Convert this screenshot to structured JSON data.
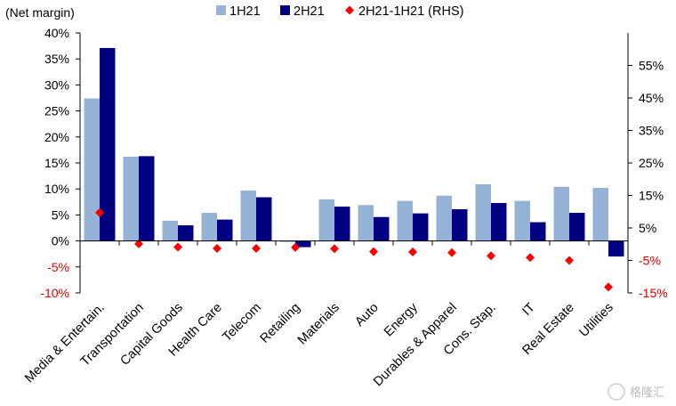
{
  "chart_data": {
    "type": "bar",
    "unit_label": "(Net margin)",
    "categories": [
      "Media & Entertain.",
      "Transportation",
      "Capital Goods",
      "Health Care",
      "Telecom",
      "Retailing",
      "Materials",
      "Auto",
      "Energy",
      "Durables & Apparel",
      "Cons. Stap.",
      "IT",
      "Real Estate",
      "Utilities"
    ],
    "series": [
      {
        "name": "1H21",
        "axis": "left",
        "color": "#95b3d7",
        "values": [
          27.4,
          16.2,
          3.9,
          5.4,
          9.7,
          -0.2,
          8.0,
          6.9,
          7.7,
          8.7,
          10.9,
          7.7,
          10.4,
          10.2
        ]
      },
      {
        "name": "2H21",
        "axis": "left",
        "color": "#000080",
        "values": [
          37.1,
          16.3,
          3.0,
          4.1,
          8.4,
          -1.2,
          6.6,
          4.6,
          5.3,
          6.1,
          7.3,
          3.6,
          5.4,
          -3.0
        ]
      },
      {
        "name": "2H21-1H21 (RHS)",
        "axis": "right",
        "type": "scatter",
        "marker": "diamond",
        "color": "#ff0000",
        "values": [
          9.7,
          0.1,
          -0.9,
          -1.3,
          -1.3,
          -1.0,
          -1.4,
          -2.3,
          -2.4,
          -2.6,
          -3.6,
          -4.1,
          -5.0,
          -13.2
        ]
      }
    ],
    "left_axis": {
      "ylim": [
        -10,
        40
      ],
      "ticks": [
        "40%",
        "35%",
        "30%",
        "25%",
        "20%",
        "15%",
        "10%",
        "5%",
        "0%",
        "-5%",
        "-10%"
      ]
    },
    "right_axis": {
      "ylim": [
        -15,
        65
      ],
      "ticks": [
        "55%",
        "45%",
        "35%",
        "25%",
        "15%",
        "5%",
        "-5%",
        "-15%"
      ]
    },
    "grid": false,
    "legend_position": "top"
  },
  "watermark": "格隆汇"
}
